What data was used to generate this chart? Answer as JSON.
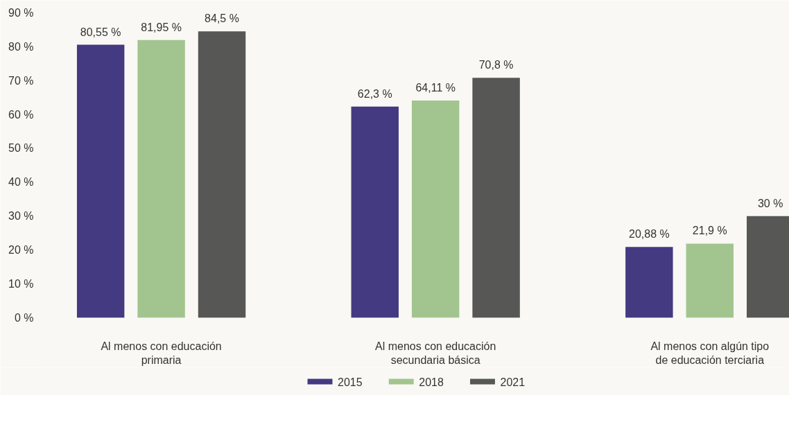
{
  "chart_data": {
    "type": "bar",
    "categories": [
      "Al menos con educación primaria",
      "Al menos con educación secundaria básica",
      "Al menos con algún tipo de educación terciaria"
    ],
    "series": [
      {
        "name": "2015",
        "color": "#433a82",
        "values": [
          80.55,
          62.3,
          20.88
        ],
        "value_labels": [
          "80,55 %",
          "62,3 %",
          "20,88 %"
        ]
      },
      {
        "name": "2018",
        "color": "#a2c58f",
        "values": [
          81.95,
          64.11,
          21.9
        ],
        "value_labels": [
          "81,95 %",
          "64,11 %",
          "21,9 %"
        ]
      },
      {
        "name": "2021",
        "color": "#575755",
        "values": [
          84.5,
          70.8,
          30
        ],
        "value_labels": [
          "84,5 %",
          "70,8 %",
          "30 %"
        ]
      }
    ],
    "ylim": [
      0,
      92
    ],
    "yticks": [
      {
        "value": 0,
        "label": "0 %"
      },
      {
        "value": 10,
        "label": "10 %"
      },
      {
        "value": 20,
        "label": "20 %"
      },
      {
        "value": 30,
        "label": "30 %"
      },
      {
        "value": 40,
        "label": "40 %"
      },
      {
        "value": 50,
        "label": "50 %"
      },
      {
        "value": 60,
        "label": "60 %"
      },
      {
        "value": 70,
        "label": "70 %"
      },
      {
        "value": 80,
        "label": "80 %"
      },
      {
        "value": 90,
        "label": "90 %"
      }
    ],
    "grid": false,
    "legend": "bottom"
  }
}
